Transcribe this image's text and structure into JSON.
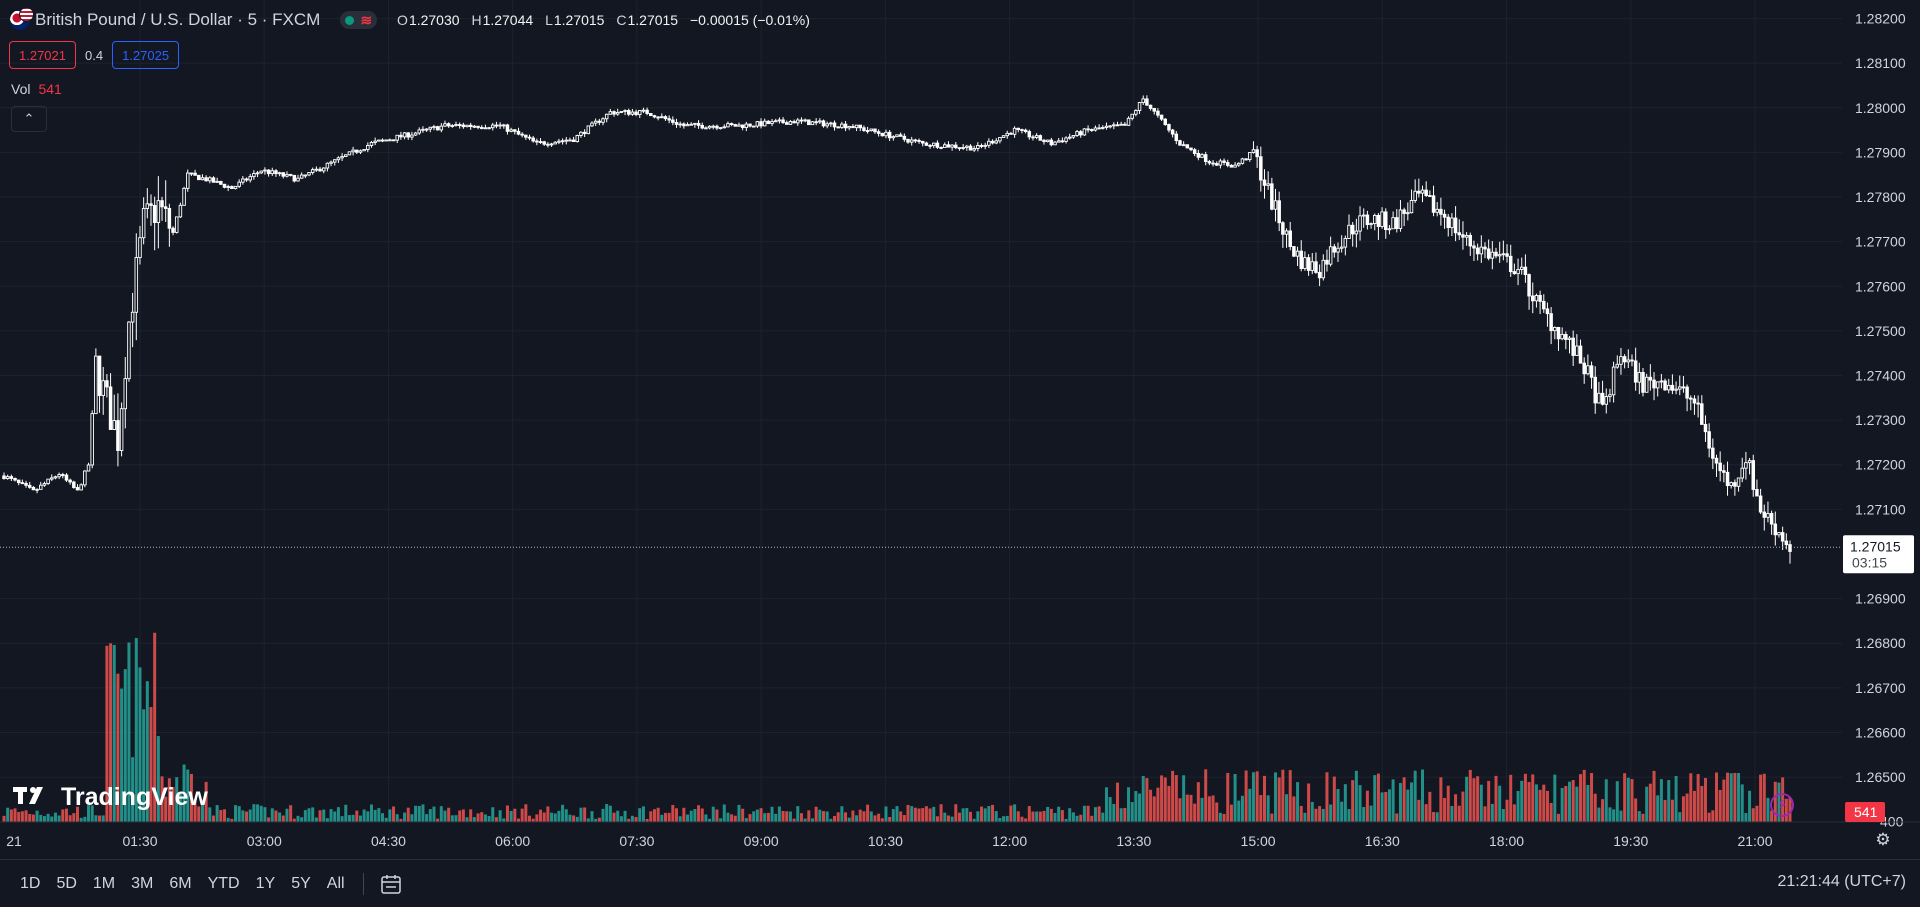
{
  "header": {
    "symbol": "British Pound / U.S. Dollar · 5 · FXCM",
    "ohlc": {
      "o_label": "O",
      "o": "1.27030",
      "h_label": "H",
      "h": "1.27044",
      "l_label": "L",
      "l": "1.27015",
      "c_label": "C",
      "c": "1.27015",
      "change": "−0.00015 (−0.01%)"
    },
    "bid": "1.27021",
    "spread": "0.4",
    "ask": "1.27025",
    "vol_label": "Vol",
    "vol_value": "541"
  },
  "logo_text": "TradingView",
  "bottombar": {
    "ranges": [
      "1D",
      "5D",
      "1M",
      "3M",
      "6M",
      "YTD",
      "1Y",
      "5Y",
      "All"
    ],
    "clock": "21:21:44 (UTC+7)"
  },
  "colors": {
    "background": "#131722",
    "up": "#ffffff",
    "up_volume": "#26a69a",
    "down_volume": "#ef5350",
    "grid": "#1e222d",
    "price_tag": "#ffffff",
    "bid": "#f23645",
    "ask": "#2962ff"
  },
  "icons": [
    "flag-gbp-usd-icon",
    "market-open-dot-icon",
    "chevron-up-icon",
    "tradingview-logo-icon",
    "lightning-icon",
    "gear-icon",
    "calendar-icon"
  ],
  "chart_data": {
    "type": "candlestick",
    "price_axis": {
      "ticks": [
        1.282,
        1.281,
        1.28,
        1.279,
        1.278,
        1.277,
        1.276,
        1.275,
        1.274,
        1.273,
        1.272,
        1.271,
        1.269,
        1.268,
        1.267,
        1.266,
        1.265
      ],
      "tick_labels": [
        "1.28200",
        "1.28100",
        "1.28000",
        "1.27900",
        "1.27800",
        "1.27700",
        "1.27600",
        "1.27500",
        "1.27400",
        "1.27300",
        "1.27200",
        "1.27100",
        "1.26900",
        "1.26800",
        "1.26700",
        "1.26600",
        "1.26500"
      ],
      "partial_label": "400",
      "min": 1.26415,
      "max": 1.28208
    },
    "time_axis": {
      "labels": [
        "21",
        "01:30",
        "03:00",
        "04:30",
        "06:00",
        "07:30",
        "09:00",
        "10:30",
        "12:00",
        "13:30",
        "15:00",
        "16:30",
        "18:00",
        "19:30",
        "21:00"
      ]
    },
    "last_price": {
      "value": 1.27015,
      "label": "1.27015",
      "countdown": "03:15"
    },
    "volume_last": "541",
    "price_path": [
      [
        0,
        1.27175
      ],
      [
        8,
        1.2714
      ],
      [
        15,
        1.2718
      ],
      [
        20,
        1.2714
      ],
      [
        23,
        1.272
      ],
      [
        25,
        1.2742
      ],
      [
        28,
        1.2734
      ],
      [
        31,
        1.2726
      ],
      [
        34,
        1.2752
      ],
      [
        38,
        1.2774
      ],
      [
        42,
        1.2778
      ],
      [
        46,
        1.2772
      ],
      [
        50,
        1.2785
      ],
      [
        55,
        1.2784
      ],
      [
        62,
        1.2782
      ],
      [
        70,
        1.2786
      ],
      [
        80,
        1.2784
      ],
      [
        90,
        1.2788
      ],
      [
        100,
        1.2792
      ],
      [
        110,
        1.2794
      ],
      [
        120,
        1.2796
      ],
      [
        135,
        1.2796
      ],
      [
        145,
        1.2792
      ],
      [
        155,
        1.2793
      ],
      [
        165,
        1.2799
      ],
      [
        175,
        1.2799
      ],
      [
        185,
        1.2796
      ],
      [
        200,
        1.2796
      ],
      [
        215,
        1.2797
      ],
      [
        230,
        1.2796
      ],
      [
        240,
        1.2794
      ],
      [
        250,
        1.2792
      ],
      [
        265,
        1.2791
      ],
      [
        275,
        1.2795
      ],
      [
        285,
        1.2792
      ],
      [
        295,
        1.2795
      ],
      [
        305,
        1.2796
      ],
      [
        310,
        1.2802
      ],
      [
        320,
        1.2792
      ],
      [
        328,
        1.2788
      ],
      [
        335,
        1.2787
      ],
      [
        340,
        1.279
      ],
      [
        345,
        1.2779
      ],
      [
        350,
        1.2769
      ],
      [
        354,
        1.2765
      ],
      [
        358,
        1.2764
      ],
      [
        362,
        1.2769
      ],
      [
        368,
        1.2774
      ],
      [
        372,
        1.2775
      ],
      [
        378,
        1.2774
      ],
      [
        385,
        1.278
      ],
      [
        392,
        1.2776
      ],
      [
        398,
        1.277
      ],
      [
        405,
        1.2767
      ],
      [
        412,
        1.2764
      ],
      [
        418,
        1.2755
      ],
      [
        425,
        1.2748
      ],
      [
        430,
        1.2742
      ],
      [
        435,
        1.2732
      ],
      [
        440,
        1.2745
      ],
      [
        446,
        1.2738
      ],
      [
        452,
        1.2739
      ],
      [
        460,
        1.2734
      ],
      [
        466,
        1.272
      ],
      [
        470,
        1.2715
      ],
      [
        474,
        1.2722
      ],
      [
        478,
        1.271
      ],
      [
        482,
        1.2706
      ],
      [
        486,
        1.27015
      ]
    ]
  }
}
